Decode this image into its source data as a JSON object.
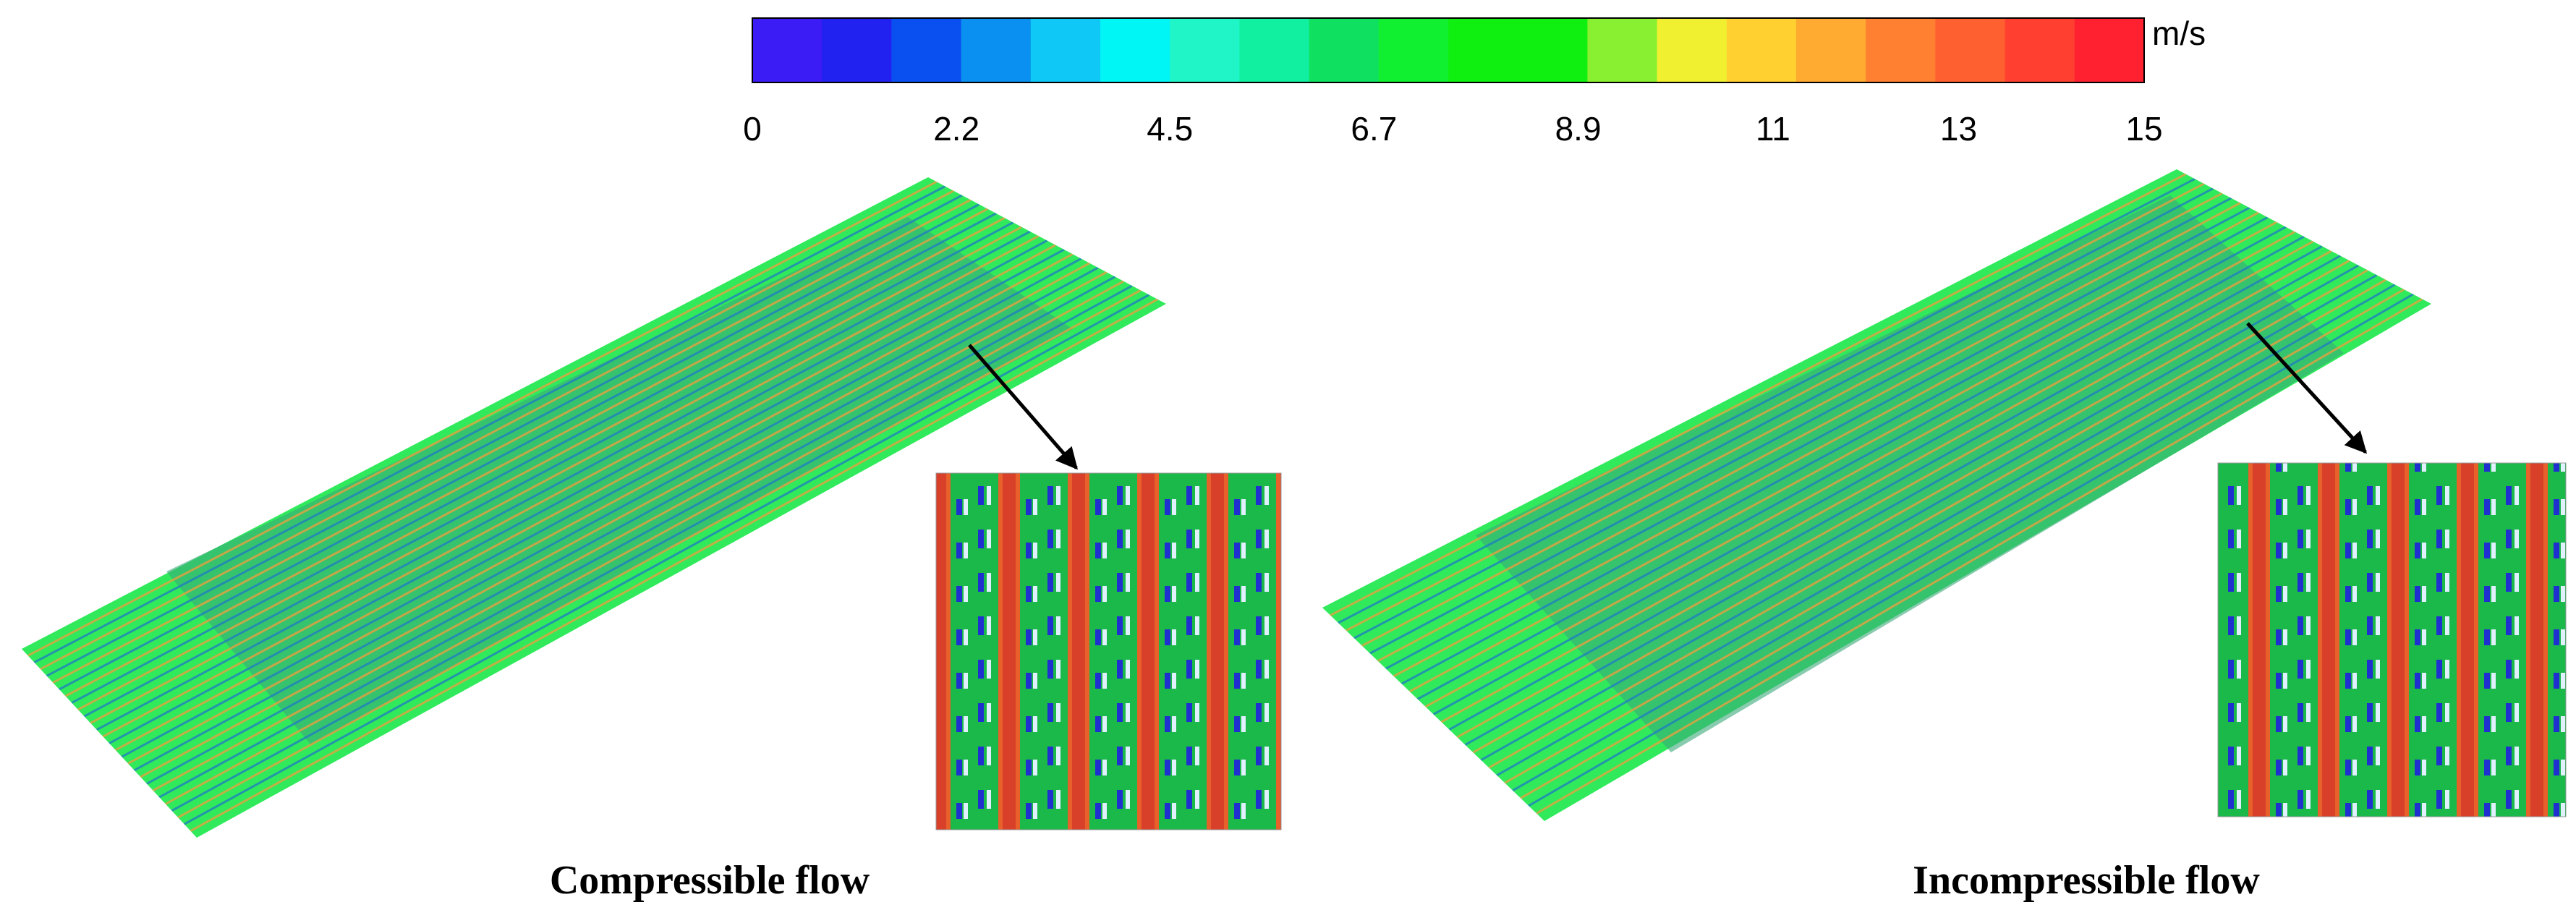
{
  "colorbar": {
    "unit": "m/s",
    "lim": [
      0,
      15
    ],
    "ticks": [
      0,
      2.2,
      4.5,
      6.7,
      8.9,
      11,
      13,
      15
    ],
    "colors": [
      "#3b1cf5",
      "#2222f0",
      "#0a50f0",
      "#0a90f0",
      "#10c8f5",
      "#00f5f5",
      "#20f5c8",
      "#10f0a0",
      "#10e060",
      "#10f030",
      "#10f010",
      "#10f010",
      "#88f030",
      "#f0f030",
      "#ffd030",
      "#ffaa30",
      "#ff8030",
      "#ff6030",
      "#ff4030",
      "#ff2030"
    ]
  },
  "panels": [
    {
      "caption": "Compressible flow"
    },
    {
      "caption": "Incompressible flow"
    }
  ]
}
